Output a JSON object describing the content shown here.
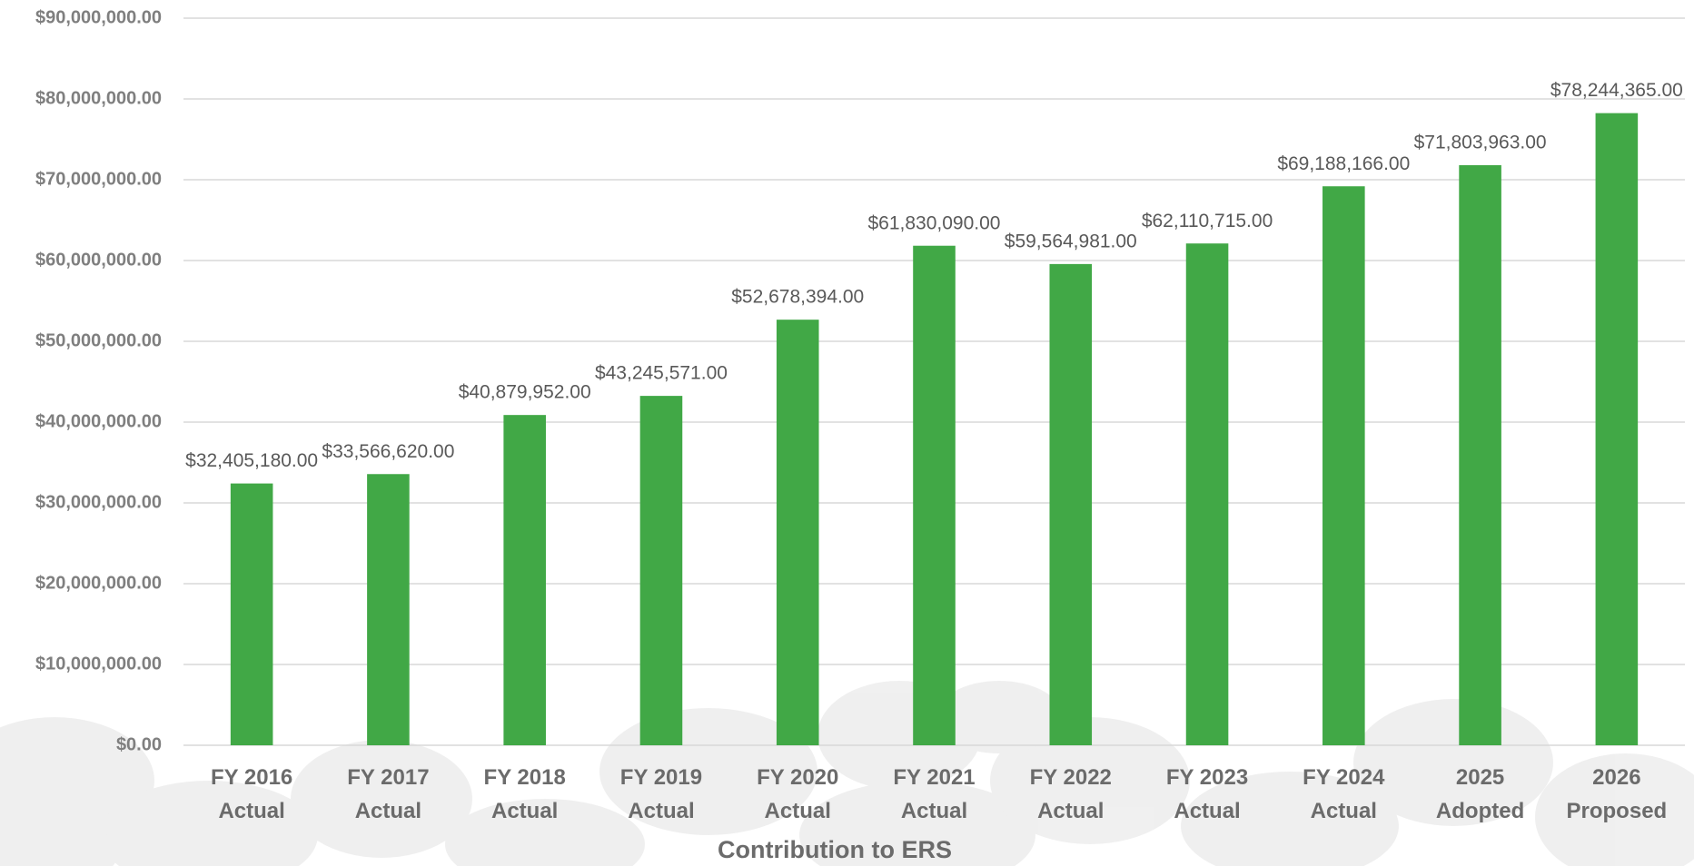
{
  "chart_data": {
    "type": "bar",
    "title": "Contribution to ERS",
    "categories": [
      [
        "FY 2016",
        "Actual"
      ],
      [
        "FY 2017",
        "Actual"
      ],
      [
        "FY 2018",
        "Actual"
      ],
      [
        "FY 2019",
        "Actual"
      ],
      [
        "FY 2020",
        "Actual"
      ],
      [
        "FY 2021",
        "Actual"
      ],
      [
        "FY 2022",
        "Actual"
      ],
      [
        "FY 2023",
        "Actual"
      ],
      [
        "FY 2024",
        "Actual"
      ],
      [
        "2025",
        "Adopted"
      ],
      [
        "2026",
        "Proposed"
      ]
    ],
    "values": [
      32405180,
      33566620,
      40879952,
      43245571,
      52678394,
      61830090,
      59564981,
      62110715,
      69188166,
      71803963,
      78244365
    ],
    "value_labels": [
      "$32,405,180.00",
      "$33,566,620.00",
      "$40,879,952.00",
      "$43,245,571.00",
      "$52,678,394.00",
      "$61,830,090.00",
      "$59,564,981.00",
      "$62,110,715.00",
      "$69,188,166.00",
      "$71,803,963.00",
      "$78,244,365.00"
    ],
    "color": "#41a846",
    "ylim": [
      0,
      90000000
    ],
    "yticks": [
      {
        "value": 0,
        "label": "$0.00"
      },
      {
        "value": 10000000,
        "label": "$10,000,000.00"
      },
      {
        "value": 20000000,
        "label": "$20,000,000.00"
      },
      {
        "value": 30000000,
        "label": "$30,000,000.00"
      },
      {
        "value": 40000000,
        "label": "$40,000,000.00"
      },
      {
        "value": 50000000,
        "label": "$50,000,000.00"
      },
      {
        "value": 60000000,
        "label": "$60,000,000.00"
      },
      {
        "value": 70000000,
        "label": "$70,000,000.00"
      },
      {
        "value": 80000000,
        "label": "$80,000,000.00"
      },
      {
        "value": 90000000,
        "label": "$90,000,000.00"
      }
    ],
    "grid": true
  }
}
